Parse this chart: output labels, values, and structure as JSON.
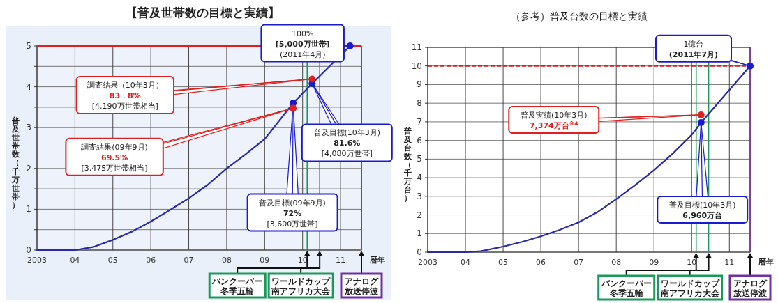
{
  "chart_data": [
    {
      "type": "line",
      "title": "【普及世帯数の目標と実績】",
      "ylabel": "普及世帯数（千万世帯）",
      "xlabel": "暦年",
      "xlim": [
        2003,
        2011.55
      ],
      "ylim": [
        0,
        5
      ],
      "xticks": [
        {
          "value": 2003,
          "label": "2003"
        },
        {
          "value": 2004,
          "label": "04"
        },
        {
          "value": 2005,
          "label": "05"
        },
        {
          "value": 2006,
          "label": "06"
        },
        {
          "value": 2007,
          "label": "07"
        },
        {
          "value": 2008,
          "label": "08"
        },
        {
          "value": 2009,
          "label": "09"
        },
        {
          "value": 2010,
          "label": "10"
        },
        {
          "value": 2011,
          "label": "11"
        }
      ],
      "yticks": [
        0,
        {
          "value": 0.5,
          "label": null
        },
        1,
        {
          "value": 1.5,
          "label": null
        },
        2,
        {
          "value": 2.5,
          "label": null
        },
        3,
        {
          "value": 3.5,
          "label": null
        },
        4,
        {
          "value": 4.5,
          "label": null
        },
        5
      ],
      "grid": true,
      "series": [
        {
          "type": "line",
          "color": "#2a2aa8",
          "x": [
            2003,
            2004,
            2004.5,
            2005,
            2005.5,
            2006,
            2006.5,
            2007,
            2007.5,
            2008,
            2008.5,
            2009,
            2009.75,
            2010.25,
            2011.25
          ],
          "values": [
            0,
            0,
            0.08,
            0.25,
            0.45,
            0.7,
            0.98,
            1.27,
            1.6,
            2.0,
            2.35,
            2.72,
            3.6,
            4.08,
            5.0
          ]
        },
        {
          "type": "scatter",
          "marker": "circle",
          "color": "#1a1ad0",
          "x": [
            2009.75,
            2010.25,
            2011.25
          ],
          "values": [
            3.6,
            4.08,
            5.0
          ]
        },
        {
          "type": "scatter",
          "marker": "circle",
          "color": "#e02020",
          "x": [
            2009.75,
            2010.25
          ],
          "values": [
            3.475,
            4.19
          ]
        }
      ],
      "ref_lines": [
        {
          "axis": "y",
          "value": 5,
          "color": "#e02020",
          "line_style": "solid"
        },
        {
          "axis": "x",
          "value": 2010.12,
          "label": "バンクーバー冬季五輪",
          "color": "#1a9a5a"
        },
        {
          "axis": "x",
          "value": 2010.45,
          "label": "ワールドカップ南アフリカ大会",
          "color": "#1a9a5a"
        },
        {
          "axis": "x",
          "value": 2011.55,
          "label": "アナログ放送停波",
          "color": "#7030a0"
        }
      ],
      "annotations": [
        {
          "text": "100%\n[5,000万世帯]\n(2011年4月)",
          "x": 2011.25,
          "y": 5.0
        },
        {
          "text": "調査結果（10年3月）\n83．8%\n[4,190万世帯相当]",
          "x": 2010.25,
          "y": 4.19
        },
        {
          "text": "調査結果(09年9月)\n69.5%\n[3,475万世帯相当]",
          "x": 2009.75,
          "y": 3.475
        },
        {
          "text": "普及目標(10年3月)\n81.6%\n[4,080万世帯]",
          "x": 2010.25,
          "y": 4.08
        },
        {
          "text": "普及目標(09年9月)\n72%\n[3,600万世帯]",
          "x": 2009.75,
          "y": 3.6
        }
      ]
    },
    {
      "type": "line",
      "title": "（参考）普及台数の目標と実績",
      "ylabel": "普及台数（千万台）",
      "xlabel": "暦年",
      "xlim": [
        2003,
        2011.55
      ],
      "ylim": [
        0,
        11
      ],
      "xticks": [
        {
          "value": 2003,
          "label": "2003"
        },
        {
          "value": 2004,
          "label": "04"
        },
        {
          "value": 2005,
          "label": "05"
        },
        {
          "value": 2006,
          "label": "06"
        },
        {
          "value": 2007,
          "label": "07"
        },
        {
          "value": 2008,
          "label": "08"
        },
        {
          "value": 2009,
          "label": "09"
        },
        {
          "value": 2010,
          "label": "10"
        },
        {
          "value": 2011,
          "label": "11"
        }
      ],
      "yticks": [
        0,
        1,
        2,
        3,
        4,
        5,
        6,
        7,
        8,
        9,
        10,
        11
      ],
      "grid": true,
      "series": [
        {
          "type": "line",
          "color": "#2a2aa8",
          "x": [
            2003,
            2004,
            2004.4,
            2005,
            2005.5,
            2006,
            2006.5,
            2007,
            2007.5,
            2008,
            2008.5,
            2009,
            2009.5,
            2010,
            2010.25,
            2011.55
          ],
          "values": [
            0,
            0,
            0.05,
            0.3,
            0.55,
            0.85,
            1.2,
            1.6,
            2.15,
            2.85,
            3.6,
            4.4,
            5.3,
            6.3,
            6.96,
            10
          ]
        },
        {
          "type": "scatter",
          "marker": "circle",
          "color": "#1a1ad0",
          "x": [
            2010.25,
            2011.55
          ],
          "values": [
            6.96,
            10
          ]
        },
        {
          "type": "scatter",
          "marker": "circle",
          "color": "#e02020",
          "x": [
            2010.25
          ],
          "values": [
            7.374
          ]
        }
      ],
      "ref_lines": [
        {
          "axis": "y",
          "value": 10,
          "color": "#e02020",
          "line_style": "dashed"
        },
        {
          "axis": "x",
          "value": 2010.12,
          "label": "バンクーバー冬季五輪",
          "color": "#1a9a5a"
        },
        {
          "axis": "x",
          "value": 2010.45,
          "label": "ワールドカップ南アフリカ大会",
          "color": "#1a9a5a"
        },
        {
          "axis": "x",
          "value": 2011.55,
          "label": "アナログ放送停波",
          "color": "#7030a0"
        }
      ],
      "annotations": [
        {
          "text": "1億台\n(2011年7月)",
          "x": 2011.55,
          "y": 10
        },
        {
          "text": "普及実績(10年3月)\n7,374万台$^{※4}$",
          "x": 2010.25,
          "y": 7.374
        },
        {
          "text": "普及目標(10年3月)\n6,960万台",
          "x": 2010.25,
          "y": 6.96
        }
      ]
    }
  ]
}
